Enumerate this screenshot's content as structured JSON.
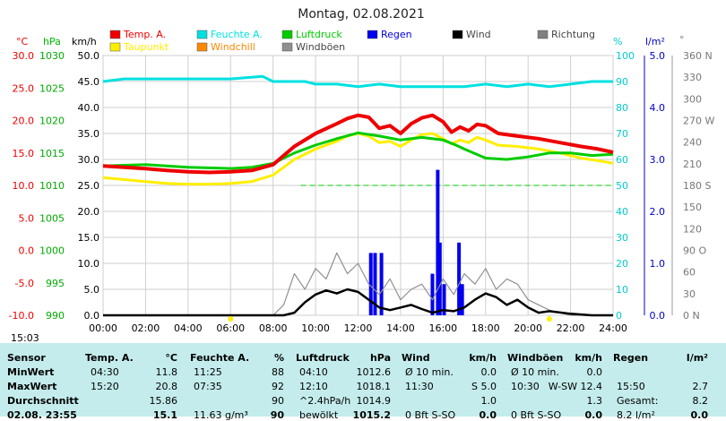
{
  "title": "Montag, 02.08.2021",
  "legend": [
    {
      "label": "Temp. A.",
      "color": "#ee0000"
    },
    {
      "label": "Feuchte A.",
      "color": "#00e0e0"
    },
    {
      "label": "Luftdruck",
      "color": "#00cc00"
    },
    {
      "label": "Regen",
      "color": "#0000ee"
    },
    {
      "label": "Wind",
      "color": "#000000"
    },
    {
      "label": "Richtung",
      "color": "#808080"
    },
    {
      "label": "Taupunkt",
      "color": "#ffee00"
    },
    {
      "label": "Windchill",
      "color": "#ff8800"
    },
    {
      "label": "Windböen",
      "color": "#909090"
    }
  ],
  "axis_units": {
    "temp": "°C",
    "press": "hPa",
    "wind": "km/h",
    "hum": "%",
    "rain": "l/m²",
    "dir": "°"
  },
  "time_marker": "15:03",
  "chart_data": {
    "type": "line",
    "title": "Montag, 02.08.2021",
    "x_ticks": [
      "00:00",
      "02:00",
      "04:00",
      "06:00",
      "08:00",
      "10:00",
      "12:00",
      "14:00",
      "16:00",
      "18:00",
      "20:00",
      "22:00",
      "24:00"
    ],
    "axes": {
      "temp": {
        "range": [
          -10,
          30
        ],
        "ticks": [
          "30.0",
          "25.0",
          "20.0",
          "15.0",
          "10.0",
          "5.0",
          "0.0",
          "-5.0",
          "-10.0"
        ]
      },
      "press": {
        "range": [
          990,
          1030
        ],
        "ticks": [
          "1030",
          "1025",
          "1020",
          "1015",
          "1010",
          "1005",
          "1000",
          "995",
          "990"
        ]
      },
      "wind": {
        "range": [
          0,
          50
        ],
        "ticks": [
          "50.0",
          "45.0",
          "40.0",
          "35.0",
          "30.0",
          "25.0",
          "20.0",
          "15.0",
          "10.0",
          "5.0",
          "0.0"
        ]
      },
      "hum": {
        "range": [
          0,
          100
        ],
        "ticks": [
          "100",
          "90",
          "80",
          "70",
          "60",
          "50",
          "40",
          "30",
          "20",
          "10",
          "0"
        ]
      },
      "rain": {
        "range": [
          0,
          5
        ],
        "ticks": [
          "5.0",
          "4.0",
          "3.0",
          "2.0",
          "1.0",
          "0.0"
        ]
      },
      "dir": {
        "range": [
          0,
          360
        ],
        "ticks": [
          "360 N",
          "330",
          "300",
          "270 W",
          "240",
          "210",
          "180 S",
          "150",
          "120",
          "90 O",
          "60",
          "30",
          "0 N"
        ]
      }
    },
    "series": [
      {
        "name": "Temp. A.",
        "axis": "temp",
        "color": "#ee0000",
        "points": [
          [
            0,
            13
          ],
          [
            1,
            12.8
          ],
          [
            2,
            12.6
          ],
          [
            3,
            12.3
          ],
          [
            4,
            12.1
          ],
          [
            5,
            12.0
          ],
          [
            6,
            12.1
          ],
          [
            7,
            12.3
          ],
          [
            8,
            13.2
          ],
          [
            9,
            16.0
          ],
          [
            10,
            18.0
          ],
          [
            11,
            19.5
          ],
          [
            11.5,
            20.3
          ],
          [
            12,
            20.8
          ],
          [
            12.5,
            20.5
          ],
          [
            13,
            18.8
          ],
          [
            13.5,
            19.2
          ],
          [
            14,
            18.0
          ],
          [
            14.5,
            19.5
          ],
          [
            15,
            20.4
          ],
          [
            15.5,
            20.8
          ],
          [
            16,
            19.8
          ],
          [
            16.4,
            18.2
          ],
          [
            16.8,
            19.0
          ],
          [
            17.2,
            18.4
          ],
          [
            17.6,
            19.4
          ],
          [
            18,
            19.2
          ],
          [
            18.6,
            18.0
          ],
          [
            19.5,
            17.6
          ],
          [
            20.5,
            17.2
          ],
          [
            21.5,
            16.6
          ],
          [
            22.5,
            16.0
          ],
          [
            23.3,
            15.6
          ],
          [
            24,
            15.1
          ]
        ]
      },
      {
        "name": "Taupunkt",
        "axis": "temp",
        "color": "#ffee00",
        "points": [
          [
            0,
            11.2
          ],
          [
            1,
            10.9
          ],
          [
            2,
            10.6
          ],
          [
            3,
            10.3
          ],
          [
            4,
            10.2
          ],
          [
            5,
            10.2
          ],
          [
            6,
            10.3
          ],
          [
            7,
            10.6
          ],
          [
            8,
            11.6
          ],
          [
            9,
            14.0
          ],
          [
            10,
            15.6
          ],
          [
            11,
            16.8
          ],
          [
            11.5,
            17.6
          ],
          [
            12,
            18.0
          ],
          [
            12.5,
            17.6
          ],
          [
            13,
            16.6
          ],
          [
            13.5,
            16.8
          ],
          [
            14,
            16.0
          ],
          [
            14.5,
            17.0
          ],
          [
            15,
            17.8
          ],
          [
            15.5,
            18.0
          ],
          [
            16,
            17.2
          ],
          [
            16.4,
            16.4
          ],
          [
            16.8,
            17.0
          ],
          [
            17.2,
            16.6
          ],
          [
            17.6,
            17.4
          ],
          [
            18,
            17.0
          ],
          [
            18.6,
            16.2
          ],
          [
            19.5,
            16.0
          ],
          [
            20.5,
            15.6
          ],
          [
            21.5,
            15.0
          ],
          [
            22.5,
            14.2
          ],
          [
            23.3,
            13.8
          ],
          [
            24,
            13.4
          ]
        ]
      },
      {
        "name": "Luftdruck",
        "axis": "press",
        "color": "#00cc00",
        "points": [
          [
            0,
            1013.0
          ],
          [
            2,
            1013.2
          ],
          [
            4,
            1012.8
          ],
          [
            6,
            1012.6
          ],
          [
            7,
            1012.8
          ],
          [
            8,
            1013.4
          ],
          [
            9,
            1015.0
          ],
          [
            10,
            1016.2
          ],
          [
            11,
            1017.2
          ],
          [
            12,
            1018.1
          ],
          [
            13,
            1017.6
          ],
          [
            14,
            1017.0
          ],
          [
            15,
            1017.4
          ],
          [
            16,
            1017.0
          ],
          [
            16.6,
            1016.2
          ],
          [
            17,
            1015.6
          ],
          [
            18,
            1014.2
          ],
          [
            19,
            1014.0
          ],
          [
            20,
            1014.4
          ],
          [
            21,
            1015.0
          ],
          [
            22,
            1015.0
          ],
          [
            23,
            1014.6
          ],
          [
            24,
            1014.8
          ]
        ]
      },
      {
        "name": "Feuchte A.",
        "axis": "hum",
        "color": "#00e0e0",
        "points": [
          [
            0,
            90
          ],
          [
            1,
            91
          ],
          [
            6,
            91
          ],
          [
            7.5,
            92
          ],
          [
            8,
            90
          ],
          [
            9.5,
            90
          ],
          [
            10,
            89
          ],
          [
            11,
            89
          ],
          [
            12,
            88
          ],
          [
            13,
            89
          ],
          [
            14,
            88
          ],
          [
            15,
            88
          ],
          [
            16,
            88
          ],
          [
            17,
            88
          ],
          [
            18,
            89
          ],
          [
            19,
            88
          ],
          [
            20,
            89
          ],
          [
            21,
            88
          ],
          [
            22,
            89
          ],
          [
            23,
            90
          ],
          [
            24,
            90
          ]
        ]
      },
      {
        "name": "Wind",
        "axis": "wind",
        "color": "#000000",
        "points": [
          [
            0,
            0
          ],
          [
            8.5,
            0
          ],
          [
            9,
            0.5
          ],
          [
            9.5,
            2.5
          ],
          [
            10,
            4.0
          ],
          [
            10.5,
            4.8
          ],
          [
            11,
            4.2
          ],
          [
            11.5,
            5.0
          ],
          [
            12,
            4.5
          ],
          [
            12.5,
            3.0
          ],
          [
            13,
            1.5
          ],
          [
            13.5,
            1.0
          ],
          [
            14,
            1.5
          ],
          [
            14.5,
            2.0
          ],
          [
            15,
            1.2
          ],
          [
            15.5,
            0.5
          ],
          [
            16,
            1.0
          ],
          [
            16.5,
            0.8
          ],
          [
            17,
            1.5
          ],
          [
            17.5,
            3.0
          ],
          [
            18,
            4.2
          ],
          [
            18.5,
            3.5
          ],
          [
            19,
            2.0
          ],
          [
            19.5,
            3.0
          ],
          [
            20,
            1.5
          ],
          [
            20.5,
            0.5
          ],
          [
            21,
            0.8
          ],
          [
            22,
            0.3
          ],
          [
            23,
            0
          ],
          [
            24,
            0
          ]
        ]
      },
      {
        "name": "Windböen",
        "axis": "wind",
        "color": "#909090",
        "points": [
          [
            0,
            0
          ],
          [
            8,
            0
          ],
          [
            8.5,
            2
          ],
          [
            9,
            8
          ],
          [
            9.5,
            5
          ],
          [
            10,
            9
          ],
          [
            10.5,
            7
          ],
          [
            11,
            12
          ],
          [
            11.5,
            8
          ],
          [
            12,
            10
          ],
          [
            12.5,
            6
          ],
          [
            13,
            4
          ],
          [
            13.5,
            7
          ],
          [
            14,
            3
          ],
          [
            14.5,
            5
          ],
          [
            15,
            6
          ],
          [
            15.5,
            3
          ],
          [
            16,
            7
          ],
          [
            16.5,
            4
          ],
          [
            17,
            8
          ],
          [
            17.5,
            6
          ],
          [
            18,
            9
          ],
          [
            18.5,
            5
          ],
          [
            19,
            7
          ],
          [
            19.5,
            6
          ],
          [
            20,
            3
          ],
          [
            20.5,
            2
          ],
          [
            21,
            1
          ],
          [
            22,
            0
          ],
          [
            24,
            0
          ]
        ]
      }
    ],
    "rain_bars": [
      {
        "x": 12.6,
        "value": 1.2
      },
      {
        "x": 12.8,
        "value": 1.2
      },
      {
        "x": 13.1,
        "value": 1.2
      },
      {
        "x": 15.5,
        "value": 0.8
      },
      {
        "x": 15.75,
        "value": 2.8
      },
      {
        "x": 15.85,
        "value": 1.4
      },
      {
        "x": 16.05,
        "value": 0.6
      },
      {
        "x": 16.75,
        "value": 1.4
      },
      {
        "x": 16.9,
        "value": 0.6
      }
    ],
    "threshold_line": {
      "axis": "temp",
      "value": 10.0,
      "color": "#00cc00"
    }
  },
  "table": {
    "headers": [
      {
        "label": "Sensor",
        "unit": ""
      },
      {
        "label": "Temp. A.",
        "unit": "°C"
      },
      {
        "label": "Feuchte A.",
        "unit": "%"
      },
      {
        "label": "Luftdruck",
        "unit": "hPa"
      },
      {
        "label": "Wind",
        "unit": "km/h"
      },
      {
        "label": "Windböen",
        "unit": "km/h"
      },
      {
        "label": "Regen",
        "unit": "l/m²"
      }
    ],
    "rows": [
      {
        "label": "MinWert",
        "cells": [
          [
            "04:30",
            "11.8"
          ],
          [
            "11:25",
            "88"
          ],
          [
            "04:10",
            "1012.6"
          ],
          [
            "Ø 10 min.",
            "0.0"
          ],
          [
            "Ø 10 min.",
            "0.0"
          ],
          [
            "",
            ""
          ]
        ]
      },
      {
        "label": "MaxWert",
        "cells": [
          [
            "15:20",
            "20.8"
          ],
          [
            "07:35",
            "92"
          ],
          [
            "12:10",
            "1018.1"
          ],
          [
            "11:30",
            "S 5.0"
          ],
          [
            "10:30",
            "W-SW 12.4"
          ],
          [
            "15:50",
            "2.7"
          ]
        ]
      },
      {
        "label": "Durchschnitt",
        "cells": [
          [
            "",
            "15.86"
          ],
          [
            "",
            "90"
          ],
          [
            "^2.4hPa/h",
            "1014.9"
          ],
          [
            "",
            "1.0"
          ],
          [
            "",
            "1.3"
          ],
          [
            "Gesamt:",
            "8.2"
          ]
        ]
      },
      {
        "label": "02.08. 23:55",
        "cells": [
          [
            "",
            "15.1"
          ],
          [
            "11.63 g/m³",
            "90"
          ],
          [
            "bewölkt",
            "1015.2"
          ],
          [
            "0 Bft S-SO",
            "0.0"
          ],
          [
            "0 Bft S-SO",
            "0.0"
          ],
          [
            "8.2 l/m²",
            "0.0"
          ]
        ]
      }
    ]
  }
}
